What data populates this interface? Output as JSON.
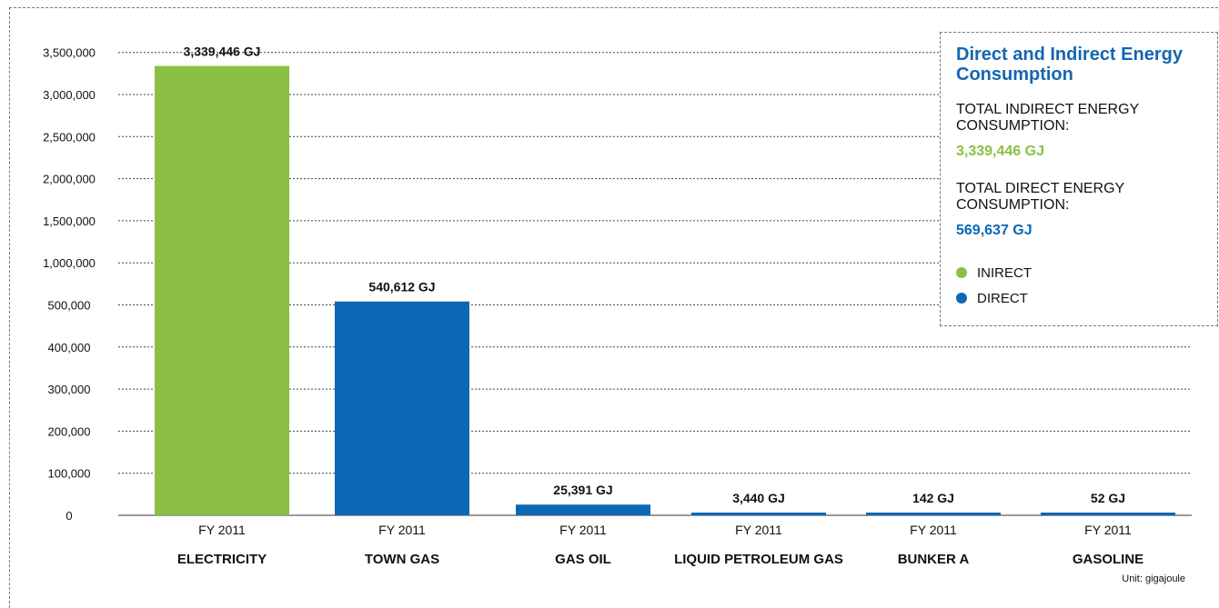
{
  "chart_data": {
    "type": "bar",
    "unit_note": "Unit: gigajoule",
    "y_ticks": [
      "0",
      "100,000",
      "200,000",
      "300,000",
      "400,000",
      "500,000",
      "1,000,000",
      "1,500,000",
      "2,000,000",
      "2,500,000",
      "3,000,000",
      "3,500,000"
    ],
    "y_tick_values": [
      0,
      100000,
      200000,
      300000,
      400000,
      500000,
      1000000,
      1500000,
      2000000,
      2500000,
      3000000,
      3500000
    ],
    "ylim": [
      0,
      3500000
    ],
    "y_scale": "broken: linear 0–500,000 then compressed 500,000–3,500,000 (ticks evenly spaced)",
    "grid": true,
    "bars": [
      {
        "category": "ELECTRICITY",
        "year": "FY 2011",
        "value": 3339446,
        "label": "3,339,446 GJ",
        "type": "indirect"
      },
      {
        "category": "TOWN GAS",
        "year": "FY 2011",
        "value": 540612,
        "label": "540,612 GJ",
        "type": "direct"
      },
      {
        "category": "GAS OIL",
        "year": "FY 2011",
        "value": 25391,
        "label": "25,391 GJ",
        "type": "direct"
      },
      {
        "category": "LIQUID PETROLEUM GAS",
        "year": "FY 2011",
        "value": 3440,
        "label": "3,440 GJ",
        "type": "direct"
      },
      {
        "category": "BUNKER A",
        "year": "FY 2011",
        "value": 142,
        "label": "142 GJ",
        "type": "direct"
      },
      {
        "category": "GASOLINE",
        "year": "FY 2011",
        "value": 52,
        "label": "52 GJ",
        "type": "direct"
      }
    ]
  },
  "legend": {
    "title": "Direct and Indirect Energy Consumption",
    "indirect_total_label": "TOTAL INDIRECT ENERGY CONSUMPTION:",
    "indirect_total_value": "3,339,446 GJ",
    "direct_total_label": "TOTAL DIRECT ENERGY CONSUMPTION:",
    "direct_total_value": "569,637 GJ",
    "items": [
      {
        "label": "INIRECT",
        "type": "indirect"
      },
      {
        "label": "DIRECT",
        "type": "direct"
      }
    ]
  },
  "colors": {
    "indirect": "#8bc044",
    "direct": "#0a68b4",
    "title": "#1466b0"
  }
}
